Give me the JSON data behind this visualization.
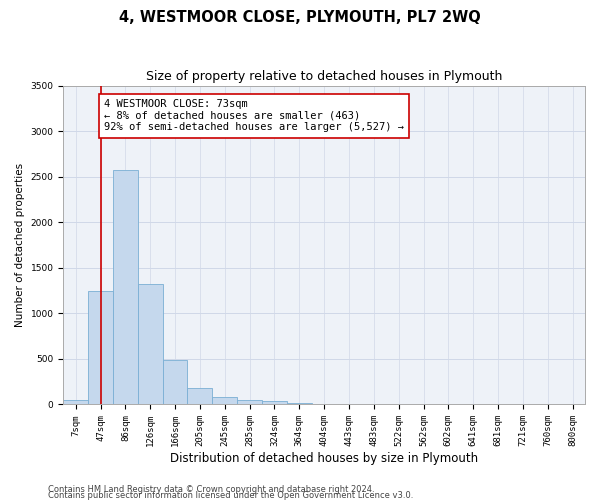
{
  "title": "4, WESTMOOR CLOSE, PLYMOUTH, PL7 2WQ",
  "subtitle": "Size of property relative to detached houses in Plymouth",
  "xlabel": "Distribution of detached houses by size in Plymouth",
  "ylabel": "Number of detached properties",
  "categories": [
    "7sqm",
    "47sqm",
    "86sqm",
    "126sqm",
    "166sqm",
    "205sqm",
    "245sqm",
    "285sqm",
    "324sqm",
    "364sqm",
    "404sqm",
    "443sqm",
    "483sqm",
    "522sqm",
    "562sqm",
    "602sqm",
    "641sqm",
    "681sqm",
    "721sqm",
    "760sqm",
    "800sqm"
  ],
  "values": [
    50,
    1250,
    2570,
    1320,
    490,
    185,
    80,
    50,
    35,
    15,
    5,
    0,
    0,
    0,
    0,
    0,
    0,
    0,
    0,
    0,
    0
  ],
  "bar_color": "#c5d8ed",
  "bar_edge_color": "#7aafd4",
  "vline_x": 1.0,
  "vline_color": "#cc0000",
  "annotation_text": "4 WESTMOOR CLOSE: 73sqm\n← 8% of detached houses are smaller (463)\n92% of semi-detached houses are larger (5,527) →",
  "annotation_box_color": "#ffffff",
  "annotation_box_edge_color": "#cc0000",
  "ylim": [
    0,
    3500
  ],
  "yticks": [
    0,
    500,
    1000,
    1500,
    2000,
    2500,
    3000,
    3500
  ],
  "grid_color": "#d0d8e8",
  "bg_color": "#eef2f8",
  "footer1": "Contains HM Land Registry data © Crown copyright and database right 2024.",
  "footer2": "Contains public sector information licensed under the Open Government Licence v3.0.",
  "title_fontsize": 10.5,
  "subtitle_fontsize": 9,
  "xlabel_fontsize": 8.5,
  "ylabel_fontsize": 7.5,
  "tick_fontsize": 6.5,
  "annotation_fontsize": 7.5,
  "footer_fontsize": 6.0
}
